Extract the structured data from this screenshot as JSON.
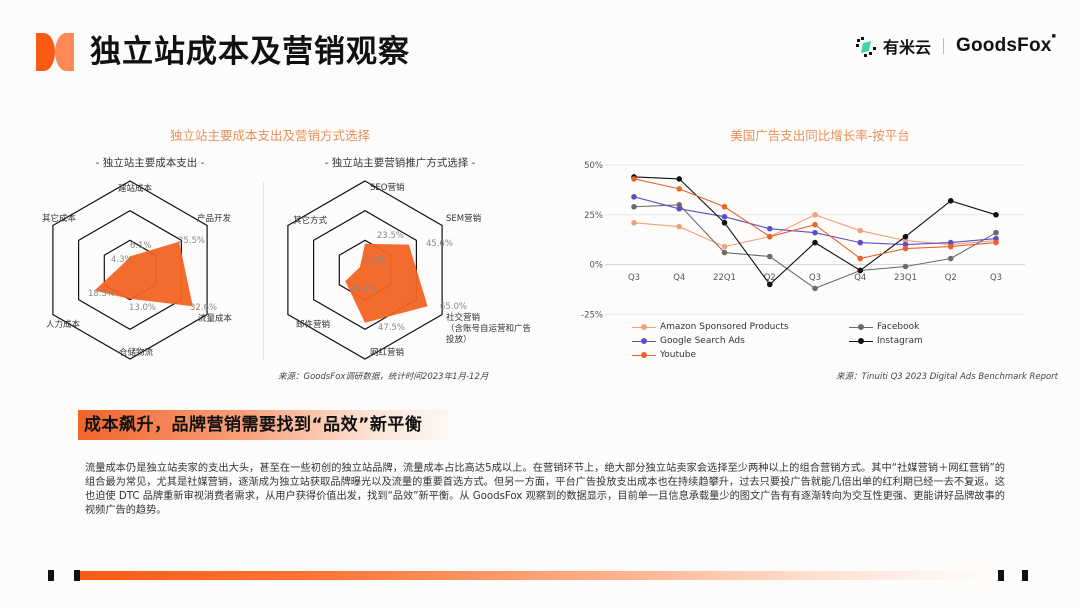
{
  "header": {
    "title": "独立站成本及营销观察",
    "logo_colors": [
      "#fb5a14",
      "#ff8a55"
    ],
    "brand": {
      "cn": "有米云",
      "en": "GoodsFox",
      "en_mark": "■"
    }
  },
  "left_section": {
    "title": "独立站主要成本支出及营销方式选择",
    "source": "来源：GoodsFox调研数据，统计时间2023年1月-12月"
  },
  "right_section": {
    "title": "美国广告支出同比增长率-按平台",
    "source": "来源：Tinuiti Q3 2023 Digital Ads Benchmark Report"
  },
  "chart_data": [
    {
      "type": "radar",
      "title": "- 独立站主要成本支出 -",
      "categories": [
        "建站成本",
        "产品开发",
        "流量成本",
        "仓储物流",
        "人力成本",
        "其它成本"
      ],
      "values": [
        6.1,
        25.5,
        32.6,
        13.0,
        18.5,
        4.3
      ],
      "value_labels": [
        "6.1%",
        "25.5%",
        "32.6%",
        "13.0%",
        "18.5%",
        "4.3%"
      ],
      "rmax": 40,
      "rings": 3,
      "fill_color": "#f26322"
    },
    {
      "type": "radar",
      "title": "- 独立站主要营销推广方式选择 -",
      "categories": [
        "SEO营销",
        "SEM营销",
        "社交营销（含账号自运营和广告投放）",
        "网红营销",
        "邮件营销",
        "其它方式"
      ],
      "categories_display": [
        "SEO营销",
        "SEM营销",
        "社交营销\n（含账号自运营和广告\n投放）",
        "网红营销",
        "邮件营销",
        "其它方式"
      ],
      "values": [
        23.5,
        45.6,
        65.0,
        47.5,
        20.4,
        5.3
      ],
      "value_labels": [
        "23.5%",
        "45.6%",
        "65.0%",
        "47.5%",
        "20.4%",
        "5.3%"
      ],
      "rmax": 80,
      "rings": 3,
      "fill_color": "#f26322"
    },
    {
      "type": "line",
      "title": "美国广告支出同比增长率-按平台",
      "categories": [
        "Q3",
        "Q4",
        "22Q1",
        "Q2",
        "Q3",
        "Q4",
        "23Q1",
        "Q2",
        "Q3"
      ],
      "ylim": [
        -25,
        50
      ],
      "yticks": [
        50,
        25,
        0,
        -25
      ],
      "ytick_labels": [
        "50%",
        "25%",
        "0%",
        "-25%"
      ],
      "grid": true,
      "legend_position": "bottom",
      "series": [
        {
          "name": "Amazon Sponsored Products",
          "color": "#f0a07a",
          "values": [
            21,
            19,
            9,
            14,
            25,
            17,
            12,
            10,
            12
          ]
        },
        {
          "name": "Facebook",
          "color": "#6b6b6b",
          "values": [
            29,
            30,
            6,
            4,
            -12,
            -3,
            -1,
            3,
            16
          ]
        },
        {
          "name": "Google Search Ads",
          "color": "#5b4fc7",
          "values": [
            34,
            28,
            24,
            18,
            16,
            11,
            10,
            11,
            13
          ]
        },
        {
          "name": "Instagram",
          "color": "#111111",
          "values": [
            44,
            43,
            21,
            -10,
            11,
            -3,
            14,
            32,
            25
          ]
        },
        {
          "name": "Youtube",
          "color": "#e8642a",
          "values": [
            43,
            38,
            29,
            14,
            20,
            3,
            8,
            9,
            11
          ]
        }
      ]
    }
  ],
  "banner": {
    "text": "成本飙升，品牌营销需要找到“品效”新平衡"
  },
  "body": {
    "paragraph": "流量成本仍是独立站卖家的支出大头，甚至在一些初创的独立站品牌，流量成本占比高达5成以上。在营销环节上，绝大部分独立站卖家会选择至少两种以上的组合营销方式。其中“社媒营销＋网红营销”的组合最为常见，尤其是社媒营销，逐渐成为独立站获取品牌曝光以及流量的重要首选方式。但另一方面，平台广告投放支出成本也在持续趋攀升，过去只要投广告就能几倍出单的红利期已经一去不复返。这也迫使 DTC 品牌重新审视消费者需求，从用户获得价值出发，找到“品效”新平衡。从 GoodsFox 观察到的数据显示，目前单一且信息承载量少的图文广告有有逐渐转向为交互性更强、更能讲好品牌故事的视频广告的趋势。"
  }
}
